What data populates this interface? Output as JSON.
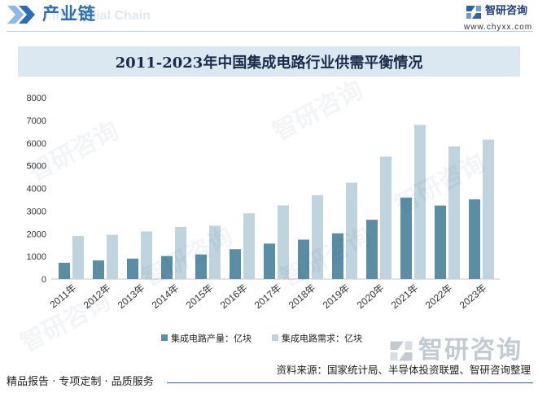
{
  "header": {
    "title": "产业链",
    "ghost_text": "Industrial Chain",
    "icon": "double-chevron-icon",
    "accent_color": "#2c6db6"
  },
  "brand": {
    "name": "智研咨询",
    "url": "www.chyxx.com",
    "icon": "brand-logo-icon",
    "color": "#1e3d79"
  },
  "chart_data": {
    "type": "bar",
    "title": "2011-2023年中国集成电路行业供需平衡情况",
    "categories": [
      "2011年",
      "2012年",
      "2013年",
      "2014年",
      "2015年",
      "2016年",
      "2017年",
      "2018年",
      "2019年",
      "2020年",
      "2021年",
      "2022年",
      "2023年"
    ],
    "series": [
      {
        "name": "集成电路产量：亿块",
        "color": "#5b8ea5",
        "values": [
          720,
          823,
          904,
          1016,
          1087,
          1318,
          1565,
          1740,
          2018,
          2615,
          3594,
          3242,
          3514
        ]
      },
      {
        "name": "集成电路需求：亿块",
        "color": "#bfd4de",
        "values": [
          1900,
          1950,
          2100,
          2300,
          2350,
          2900,
          3250,
          3700,
          4250,
          5400,
          6800,
          5850,
          6150
        ]
      }
    ],
    "xlabel": "",
    "ylabel": "",
    "ylim": [
      0,
      8000
    ],
    "yticks": [
      0,
      1000,
      2000,
      3000,
      4000,
      5000,
      6000,
      7000,
      8000
    ],
    "grid": false,
    "legend": "bottom"
  },
  "watermark": {
    "text": "智研咨询"
  },
  "footer": {
    "source": "资料来源：国家统计局、半导体投资联盟、智研咨询整理",
    "slogan": "精品报告 · 专项定制 · 品质服务"
  }
}
